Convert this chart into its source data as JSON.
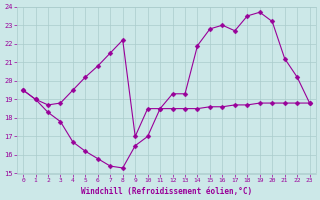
{
  "xlabel": "Windchill (Refroidissement éolien,°C)",
  "x_data": [
    0,
    1,
    2,
    3,
    4,
    5,
    6,
    7,
    8,
    9,
    10,
    11,
    12,
    13,
    14,
    15,
    16,
    17,
    18,
    19,
    20,
    21,
    22,
    23
  ],
  "line1_y": [
    19.5,
    19.0,
    18.7,
    18.8,
    19.5,
    20.2,
    20.8,
    21.5,
    22.2,
    17.0,
    18.5,
    18.5,
    18.5,
    18.5,
    18.5,
    18.6,
    18.6,
    18.7,
    18.7,
    18.8,
    18.8,
    18.8,
    18.8,
    18.8
  ],
  "line2_y": [
    19.5,
    19.0,
    18.3,
    17.8,
    16.7,
    16.2,
    15.8,
    15.4,
    15.3,
    16.5,
    17.0,
    18.5,
    19.3,
    19.3,
    21.9,
    22.8,
    23.0,
    22.7,
    23.5,
    23.7,
    23.2,
    21.2,
    20.2,
    18.8
  ],
  "line_color": "#990099",
  "marker": "D",
  "marker_size": 2.5,
  "bg_color": "#cce8e8",
  "grid_color": "#aacccc",
  "tick_color": "#990099",
  "label_color": "#990099",
  "xlim": [
    -0.5,
    23.5
  ],
  "ylim": [
    15,
    24
  ],
  "yticks": [
    15,
    16,
    17,
    18,
    19,
    20,
    21,
    22,
    23,
    24
  ],
  "xticks": [
    0,
    1,
    2,
    3,
    4,
    5,
    6,
    7,
    8,
    9,
    10,
    11,
    12,
    13,
    14,
    15,
    16,
    17,
    18,
    19,
    20,
    21,
    22,
    23
  ]
}
